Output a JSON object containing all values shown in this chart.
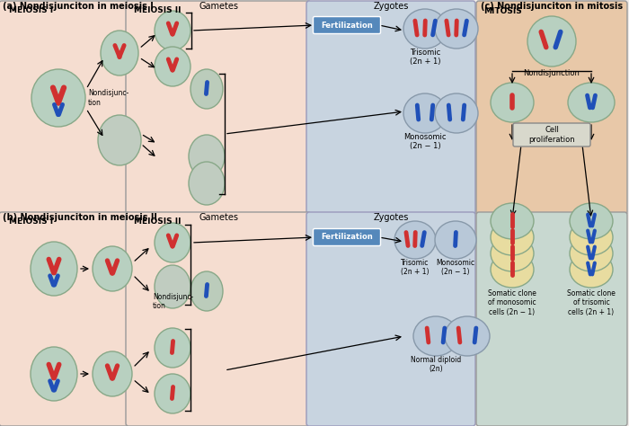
{
  "bg_color": "#f0ece8",
  "panel_a_bg": "#f5ddd0",
  "panel_b_bg": "#f5ddd0",
  "panel_c_top_bg": "#e8c8a8",
  "panel_c_bot_bg": "#c8d8d0",
  "zygote_bg_a": "#c8d4e0",
  "zygote_bg_b": "#c8d4e0",
  "cell_color": "#b8d0c0",
  "cell_color_grey": "#c0c8c0",
  "cell_edge": "#88a888",
  "red_chr": "#d03030",
  "blue_chr": "#2050b8",
  "fertilization_bg": "#5588bb",
  "box_edge": "#888888",
  "title_a": "(a) Nondisjunciton in meiosis I",
  "title_b": "(b) Nondisjunciton in meiosis II",
  "title_c": "(c) Nondisjunciton in mitosis",
  "label_gametes": "Gametes",
  "label_zygotes": "Zygotes",
  "label_meiosis_I": "MEIOSIS I",
  "label_meiosis_II": "MEIOSIS II",
  "label_mitosis": "MITOSIS",
  "label_nondisj_a": "Nondisjunc-\ntion",
  "label_nondisj_b": "Nondisjunc-\ntion",
  "label_nondisj_c": "Nondisjunction",
  "label_fertilization": "Fertilization",
  "label_trisomic_a": "Trisomic\n(2n + 1)",
  "label_monosomic_a": "Monosomic\n(2n − 1)",
  "label_trisomic_b": "Trisomic\n(2n + 1)",
  "label_monosomic_b": "Monosomic\n(2n − 1)",
  "label_normal_b": "Normal diploid\n(2n)",
  "label_cell_prolif": "Cell\nproliferation",
  "label_somatic_mono": "Somatic clone\nof monosomic\ncells (2n − 1)",
  "label_somatic_tri": "Somatic clone\nof trisomic\ncells (2n + 1)"
}
